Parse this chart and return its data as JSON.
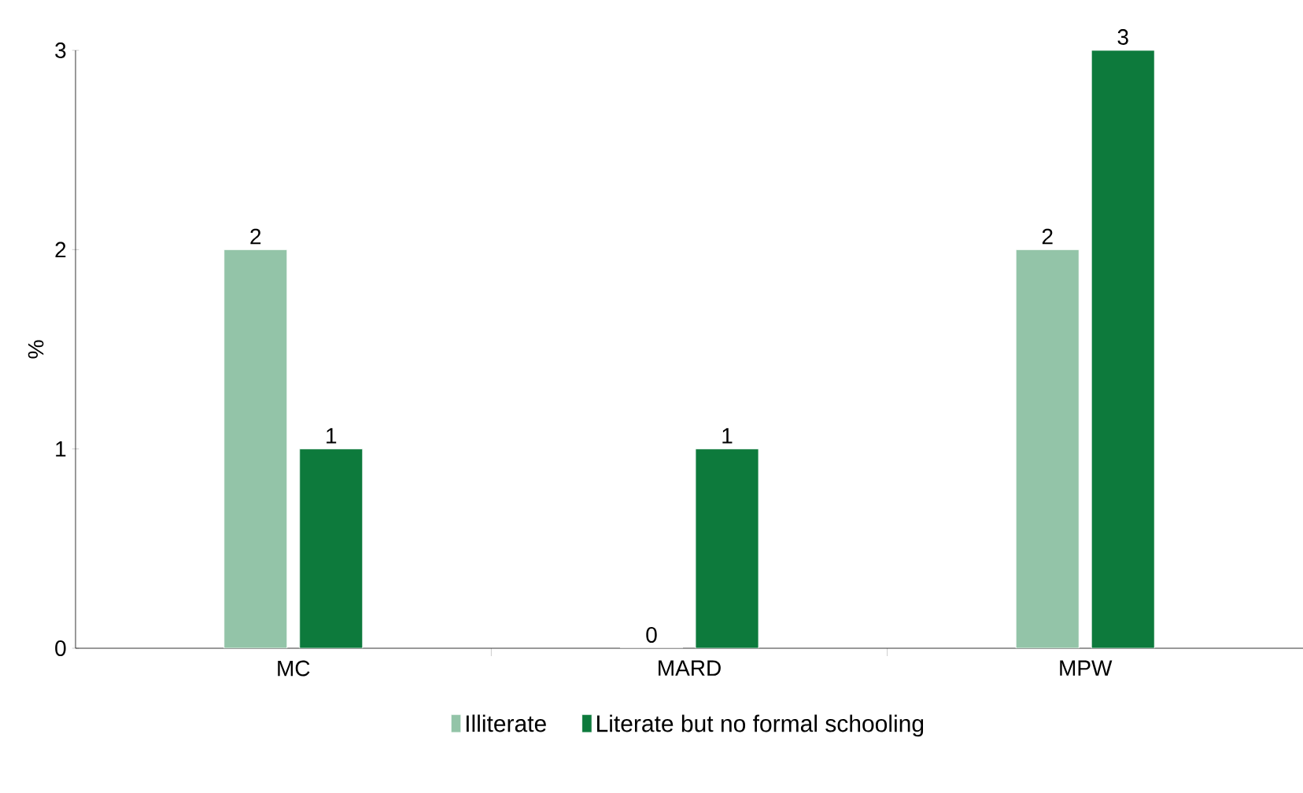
{
  "chart_data": {
    "type": "bar",
    "ylabel": "%",
    "categories": [
      "MC",
      "MARD",
      "MPW"
    ],
    "series": [
      {
        "name": "Illiterate",
        "color": "#93c4a8",
        "values": [
          2,
          0,
          2
        ]
      },
      {
        "name": "Literate but no formal schooling",
        "color": "#0d7a3c",
        "values": [
          1,
          1,
          3
        ]
      }
    ],
    "ylim": [
      0,
      3
    ],
    "yticks": [
      0,
      1,
      2,
      3
    ],
    "data_labels": true,
    "legend": "bottom"
  }
}
